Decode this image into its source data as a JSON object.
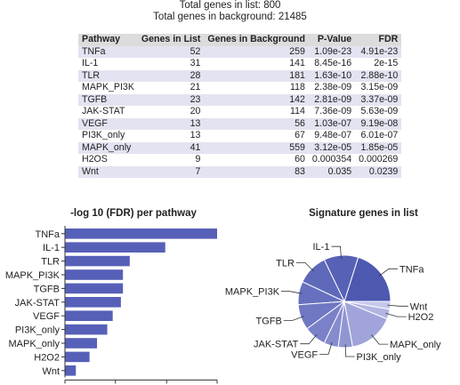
{
  "header": {
    "total_in_list": "Total genes in list: 800",
    "total_in_background": "Total genes in background: 21485"
  },
  "table": {
    "columns": [
      "Pathway",
      "Genes in List",
      "Genes in Background",
      "P-Value",
      "FDR"
    ],
    "rows": [
      [
        "TNFa",
        "52",
        "259",
        "1.09e-23",
        "4.91e-23"
      ],
      [
        "IL-1",
        "31",
        "141",
        "8.45e-16",
        "2e-15"
      ],
      [
        "TLR",
        "28",
        "181",
        "1.63e-10",
        "2.88e-10"
      ],
      [
        "MAPK_PI3K",
        "21",
        "118",
        "2.38e-09",
        "3.15e-09"
      ],
      [
        "TGFB",
        "23",
        "142",
        "2.81e-09",
        "3.37e-09"
      ],
      [
        "JAK-STAT",
        "20",
        "114",
        "7.36e-09",
        "5.63e-09"
      ],
      [
        "VEGF",
        "13",
        "56",
        "1.03e-07",
        "9.19e-08"
      ],
      [
        "PI3K_only",
        "13",
        "67",
        "9.48e-07",
        "6.01e-07"
      ],
      [
        "MAPK_only",
        "41",
        "559",
        "3.12e-05",
        "1.85e-05"
      ],
      [
        "H2OS",
        "9",
        "60",
        "0.000354",
        "0.000269"
      ],
      [
        "Wnt",
        "7",
        "83",
        "0.035",
        "0.0239"
      ]
    ]
  },
  "chart_data": [
    {
      "type": "bar",
      "orientation": "horizontal",
      "title": "-log 10 (FDR) per pathway",
      "categories": [
        "TNFa",
        "IL-1",
        "TLR",
        "MAPK_PI3K",
        "TGFB",
        "JAK-STAT",
        "VEGF",
        "PI3K_only",
        "MAPK_only",
        "H2O2",
        "Wnt"
      ],
      "values": [
        22.3,
        14.7,
        9.5,
        8.5,
        8.5,
        8.2,
        7.0,
        6.2,
        4.7,
        3.6,
        1.6
      ],
      "xlim": [
        0,
        22.3
      ],
      "ticks": [
        "0.0",
        "7.4",
        "14.9",
        "22.3"
      ],
      "color": "#5660b8",
      "grid": false
    },
    {
      "type": "pie",
      "title": "Signature genes in list",
      "slices": [
        {
          "label": "TNFa",
          "value": 52,
          "color": "#4d58b0"
        },
        {
          "label": "IL-1",
          "value": 31,
          "color": "#5761b5"
        },
        {
          "label": "TLR",
          "value": 28,
          "color": "#5f69ba"
        },
        {
          "label": "MAPK_PI3K",
          "value": 21,
          "color": "#6770be"
        },
        {
          "label": "TGFB",
          "value": 23,
          "color": "#7078c3"
        },
        {
          "label": "JAK-STAT",
          "value": 20,
          "color": "#7a81c8"
        },
        {
          "label": "VEGF",
          "value": 13,
          "color": "#858bcd"
        },
        {
          "label": "PI3K_only",
          "value": 13,
          "color": "#9196d3"
        },
        {
          "label": "MAPK_only",
          "value": 41,
          "color": "#a0a4da"
        },
        {
          "label": "H2O2",
          "value": 9,
          "color": "#b2b5e2"
        },
        {
          "label": "Wnt",
          "value": 7,
          "color": "#c7c9ec"
        }
      ]
    }
  ]
}
